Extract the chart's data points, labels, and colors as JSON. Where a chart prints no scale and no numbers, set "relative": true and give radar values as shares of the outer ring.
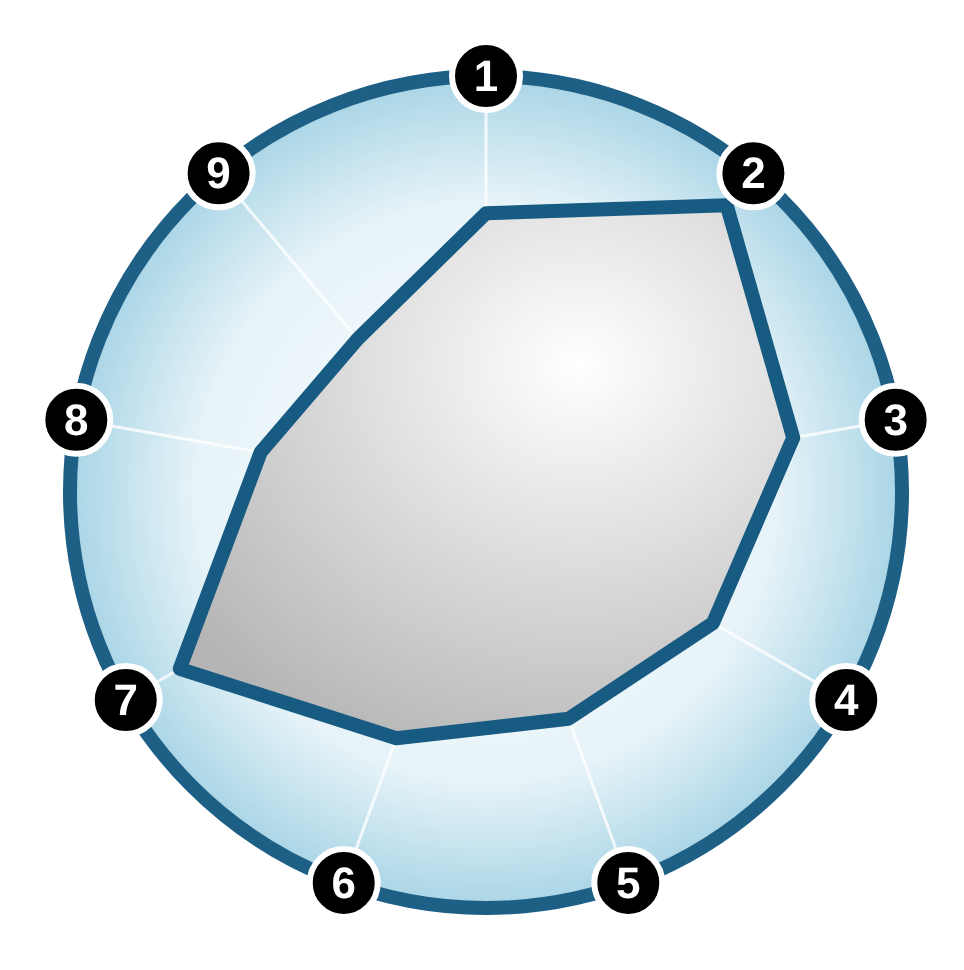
{
  "chart_data": {
    "type": "radar",
    "relative": true,
    "categories": [
      "1",
      "2",
      "3",
      "4",
      "5",
      "6",
      "7",
      "8",
      "9"
    ],
    "series": [
      {
        "color": "#175b82",
        "values": [
          0.67,
          0.9,
          0.75,
          0.63,
          0.58,
          0.63,
          0.85,
          0.55,
          0.48
        ]
      }
    ]
  }
}
